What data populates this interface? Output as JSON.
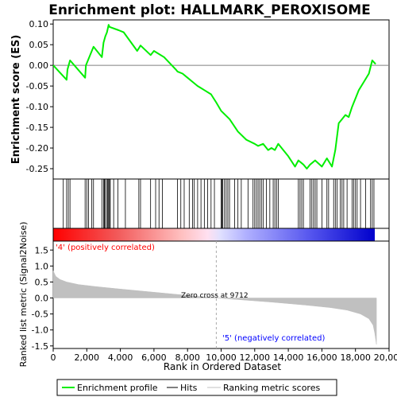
{
  "chart_data": {
    "type": "line",
    "title": "Enrichment plot: HALLMARK_PEROXISOME",
    "xlabel": "Rank in Ordered Dataset",
    "xlim": [
      0,
      20000
    ],
    "xticks": [
      0,
      2000,
      4000,
      6000,
      8000,
      10000,
      12000,
      14000,
      16000,
      18000,
      20000
    ],
    "xtick_labels": [
      "0",
      "2,000",
      "4,000",
      "6,000",
      "8,000",
      "10,000",
      "12,000",
      "14,000",
      "16,000",
      "18,000",
      "20,000"
    ],
    "panels": {
      "es": {
        "ylabel": "Enrichment score (ES)",
        "ylim": [
          -0.275,
          0.11
        ],
        "yticks": [
          0.1,
          0.05,
          0.0,
          -0.05,
          -0.1,
          -0.15,
          -0.2,
          -0.25
        ],
        "ytick_labels": [
          "0.10",
          "0.05",
          "0.00",
          "-0.05",
          "-0.10",
          "-0.15",
          "-0.20",
          "-0.25"
        ],
        "series": [
          {
            "name": "Enrichment profile",
            "color": "#00ee00",
            "x": [
              0,
              800,
              850,
              1000,
              1900,
              1950,
              2400,
              2900,
              3000,
              3100,
              3200,
              3300,
              3350,
              3900,
              4200,
              5000,
              5200,
              5800,
              6000,
              6200,
              6600,
              7300,
              7400,
              7700,
              8000,
              8300,
              8600,
              9000,
              9400,
              9712,
              10000,
              10500,
              11000,
              11500,
              12000,
              12200,
              12500,
              12800,
              13000,
              13200,
              13400,
              14000,
              14400,
              14600,
              14900,
              15100,
              15300,
              15600,
              16000,
              16300,
              16600,
              16800,
              17000,
              17200,
              17400,
              17600,
              17800,
              18000,
              18200,
              18500,
              18800,
              19000,
              19200
            ],
            "y": [
              0.0,
              -0.035,
              -0.01,
              0.012,
              -0.03,
              0.0,
              0.045,
              0.02,
              0.055,
              0.07,
              0.08,
              0.098,
              0.093,
              0.085,
              0.08,
              0.035,
              0.048,
              0.025,
              0.035,
              0.03,
              0.02,
              -0.01,
              -0.015,
              -0.02,
              -0.03,
              -0.04,
              -0.05,
              -0.06,
              -0.07,
              -0.09,
              -0.11,
              -0.13,
              -0.16,
              -0.18,
              -0.19,
              -0.195,
              -0.19,
              -0.205,
              -0.2,
              -0.205,
              -0.19,
              -0.22,
              -0.245,
              -0.23,
              -0.24,
              -0.25,
              -0.24,
              -0.23,
              -0.245,
              -0.225,
              -0.245,
              -0.205,
              -0.14,
              -0.13,
              -0.12,
              -0.125,
              -0.1,
              -0.08,
              -0.06,
              -0.04,
              -0.02,
              0.012,
              0.003
            ]
          }
        ]
      },
      "hits": {
        "name": "Hits",
        "color": "#000000",
        "positions": [
          600,
          800,
          900,
          1000,
          1900,
          2000,
          2100,
          2300,
          2400,
          2900,
          3000,
          3050,
          3100,
          3200,
          3250,
          3300,
          3350,
          3400,
          3600,
          3850,
          4300,
          5100,
          5200,
          5800,
          6100,
          6300,
          6500,
          7400,
          7600,
          7800,
          8100,
          8300,
          8400,
          8600,
          8800,
          9000,
          9200,
          9400,
          9600,
          10000,
          10050,
          10100,
          10200,
          10300,
          10400,
          10500,
          10800,
          11000,
          11200,
          11600,
          11900,
          12000,
          12100,
          12200,
          12300,
          12400,
          12500,
          12700,
          12900,
          13100,
          13200,
          13300,
          13400,
          14600,
          14700,
          14800,
          14900,
          15300,
          15400,
          15500,
          15600,
          15700,
          16000,
          16300,
          16400,
          16700,
          16800,
          16900,
          17100,
          17200,
          17300,
          17500,
          17800,
          17900,
          18000,
          18100,
          18300,
          18600,
          18900,
          19000,
          19100
        ]
      },
      "metric": {
        "ylabel": "Ranked list metric (Signal2Noise)",
        "ylim": [
          -1.58,
          1.78
        ],
        "yticks": [
          1.5,
          1.0,
          0.5,
          0.0,
          -0.5,
          -1.0,
          -1.5
        ],
        "ytick_labels": [
          "1.5",
          "1.0",
          "0.5",
          "0.0",
          "-0.5",
          "-1.0",
          "-1.5"
        ],
        "color": "#c0c0c0",
        "x": [
          0,
          150,
          400,
          800,
          1500,
          2500,
          4000,
          6000,
          8000,
          9712,
          11000,
          13000,
          15000,
          16500,
          17500,
          18300,
          18800,
          19050,
          19150,
          19250
        ],
        "y": [
          0.85,
          0.68,
          0.58,
          0.5,
          0.42,
          0.36,
          0.28,
          0.18,
          0.08,
          0.0,
          -0.05,
          -0.13,
          -0.22,
          -0.3,
          -0.38,
          -0.5,
          -0.65,
          -0.85,
          -1.1,
          -1.45
        ]
      }
    },
    "annotations": {
      "zero_cross": "Zero cross at 9712",
      "positive_label": "'4' (positively correlated)",
      "negative_label": "'5' (negatively correlated)",
      "zero_cross_rank": 9712
    },
    "legend": {
      "placement": "bottom",
      "items": [
        {
          "label": "Enrichment profile",
          "color": "#00ee00"
        },
        {
          "label": "Hits",
          "color": "#000000"
        },
        {
          "label": "Ranking metric scores",
          "color": "#c0c0c0"
        }
      ]
    },
    "colors": {
      "positive_label": "#ff0000",
      "negative_label": "#0000ff"
    }
  }
}
